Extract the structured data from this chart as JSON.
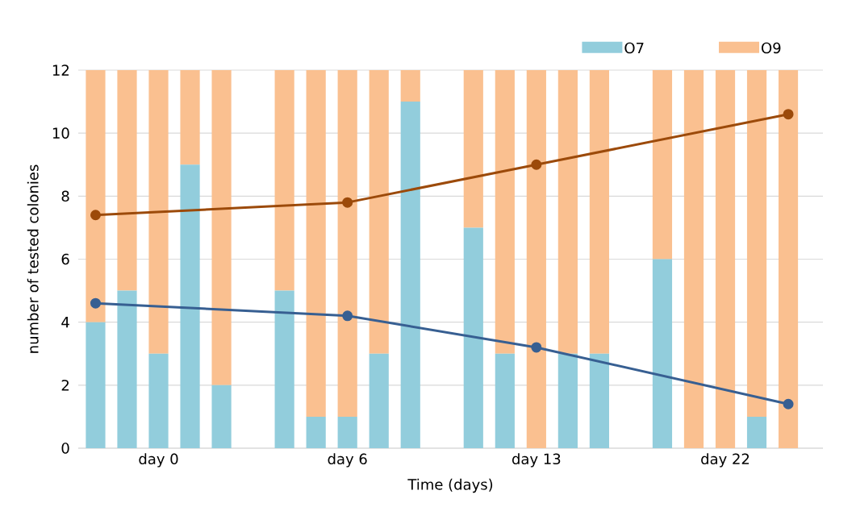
{
  "chart_data": {
    "type": "bar",
    "stacked": true,
    "xlabel": "Time (days)",
    "ylabel": "number of tested colonies",
    "categories": [
      null,
      null,
      "day 0",
      null,
      null,
      null,
      null,
      null,
      "day 6",
      null,
      null,
      null,
      null,
      null,
      "day 13",
      null,
      null,
      null,
      null,
      null,
      "day 22",
      null,
      null
    ],
    "series": [
      {
        "name": "O7",
        "color": "#92cddc",
        "values": [
          4,
          5,
          3,
          9,
          2,
          null,
          5,
          1,
          1,
          3,
          11,
          null,
          7,
          3,
          0,
          3,
          3,
          null,
          6,
          0,
          0,
          1,
          0
        ]
      },
      {
        "name": "O9",
        "color": "#fac090",
        "values": [
          8,
          7,
          9,
          3,
          10,
          null,
          7,
          11,
          11,
          9,
          1,
          null,
          5,
          9,
          12,
          9,
          9,
          null,
          6,
          12,
          12,
          11,
          12
        ]
      },
      {
        "type": "line",
        "color": "#9c4a0a",
        "values": [
          7.4,
          null,
          null,
          null,
          null,
          null,
          null,
          null,
          7.8,
          null,
          null,
          null,
          null,
          null,
          9.0,
          null,
          null,
          null,
          null,
          null,
          null,
          null,
          10.6
        ]
      },
      {
        "type": "line",
        "color": "#375f92",
        "values": [
          4.6,
          null,
          null,
          null,
          null,
          null,
          null,
          null,
          4.2,
          null,
          null,
          null,
          null,
          null,
          3.2,
          null,
          null,
          null,
          null,
          null,
          null,
          null,
          1.4
        ]
      }
    ],
    "ylim": [
      0,
      12
    ],
    "yticks": [
      0,
      2,
      4,
      6,
      8,
      10,
      12
    ],
    "grid": "y",
    "legend": "top right",
    "marker": "circle",
    "line_style": "solid"
  }
}
